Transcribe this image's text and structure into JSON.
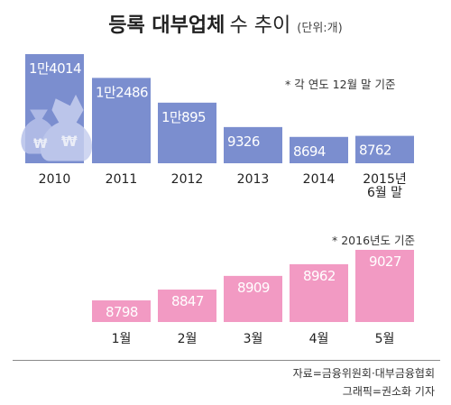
{
  "title": {
    "bold": "등록 대부업체",
    "light": "수 추이",
    "unit": "(단위:개)"
  },
  "chart_data": [
    {
      "type": "bar",
      "note": "* 각 연도 12월 말 기준",
      "categories": [
        "2010",
        "2011",
        "2012",
        "2013",
        "2014",
        "2015년\n6월 말"
      ],
      "labels": [
        "1만4014",
        "1만2486",
        "1만895",
        "9326",
        "8694",
        "8762"
      ],
      "values": [
        14014,
        12486,
        10895,
        9326,
        8694,
        8762
      ],
      "color": "#7b8ecf",
      "icon": "money-bag-icon"
    },
    {
      "type": "bar",
      "note": "* 2016년도 기준",
      "categories": [
        "1월",
        "2월",
        "3월",
        "4월",
        "5월"
      ],
      "labels": [
        "8798",
        "8847",
        "8909",
        "8962",
        "9027"
      ],
      "values": [
        8798,
        8847,
        8909,
        8962,
        9027
      ],
      "color": "#f29ac3"
    }
  ],
  "credits": {
    "source": "자료=금융위원회·대부금융협회",
    "graphic": "그래픽=권소화 기자"
  }
}
